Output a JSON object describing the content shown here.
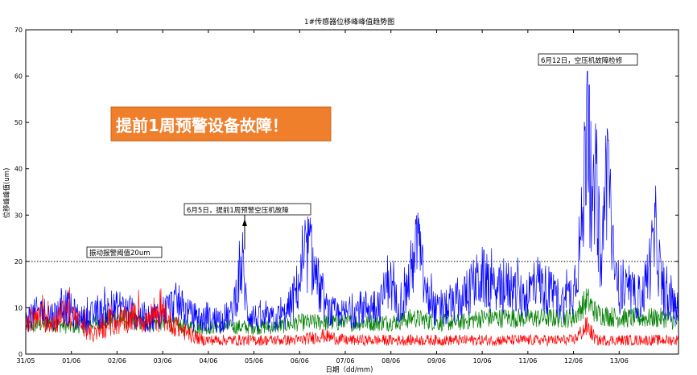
{
  "chart_data": {
    "type": "line",
    "title": "1#传感器位移峰峰值趋势图",
    "xlabel": "日期（dd/mm)",
    "ylabel": "位移峰峰值(um)",
    "ylim": [
      0,
      70
    ],
    "yticks": [
      0,
      10,
      20,
      30,
      40,
      50,
      60,
      70
    ],
    "xticks": [
      "31/05",
      "01/06",
      "02/06",
      "03/06",
      "04/06",
      "05/06",
      "06/06",
      "07/06",
      "08/06",
      "09/06",
      "10/06",
      "11/06",
      "12/06",
      "13/06"
    ],
    "xlim_days": [
      0,
      14.3
    ],
    "threshold": {
      "value": 20,
      "label": "振动报警阈值20um"
    },
    "annotations": [
      {
        "text": "6月5日，提前1周预警空压机故障",
        "x_day": 4.8,
        "y": 24
      },
      {
        "text": "6月12日，空压机故障检修",
        "x_day": 12.3,
        "y": 63
      }
    ],
    "callout": {
      "text": "提前1周预警设备故障！",
      "background": "#f07f2c"
    },
    "series": [
      {
        "color": "#0000ff",
        "points": [
          [
            0.0,
            8
          ],
          [
            0.3,
            10
          ],
          [
            0.6,
            9
          ],
          [
            0.9,
            11
          ],
          [
            1.2,
            8
          ],
          [
            1.5,
            9
          ],
          [
            1.8,
            10
          ],
          [
            2.1,
            11
          ],
          [
            2.4,
            9
          ],
          [
            2.7,
            8
          ],
          [
            3.0,
            10
          ],
          [
            3.3,
            12
          ],
          [
            3.6,
            9
          ],
          [
            3.9,
            8
          ],
          [
            4.2,
            8
          ],
          [
            4.5,
            9
          ],
          [
            4.75,
            21
          ],
          [
            4.85,
            10
          ],
          [
            5.1,
            8
          ],
          [
            5.4,
            8
          ],
          [
            5.7,
            9
          ],
          [
            5.9,
            14
          ],
          [
            6.1,
            20
          ],
          [
            6.2,
            25
          ],
          [
            6.35,
            18
          ],
          [
            6.6,
            10
          ],
          [
            6.9,
            9
          ],
          [
            7.2,
            10
          ],
          [
            7.5,
            11
          ],
          [
            7.8,
            12
          ],
          [
            7.95,
            18
          ],
          [
            8.1,
            12
          ],
          [
            8.3,
            13
          ],
          [
            8.5,
            22
          ],
          [
            8.6,
            26
          ],
          [
            8.75,
            14
          ],
          [
            9.0,
            10
          ],
          [
            9.3,
            11
          ],
          [
            9.6,
            13
          ],
          [
            9.8,
            16
          ],
          [
            10.0,
            18
          ],
          [
            10.3,
            14
          ],
          [
            10.6,
            16
          ],
          [
            10.9,
            13
          ],
          [
            11.2,
            17
          ],
          [
            11.5,
            14
          ],
          [
            11.8,
            12
          ],
          [
            12.0,
            15
          ],
          [
            12.2,
            30
          ],
          [
            12.3,
            61
          ],
          [
            12.4,
            28
          ],
          [
            12.5,
            41
          ],
          [
            12.6,
            18
          ],
          [
            12.75,
            48
          ],
          [
            12.9,
            16
          ],
          [
            13.2,
            14
          ],
          [
            13.5,
            13
          ],
          [
            13.7,
            22
          ],
          [
            13.8,
            28
          ],
          [
            13.95,
            14
          ],
          [
            14.1,
            12
          ],
          [
            14.3,
            10
          ]
        ]
      },
      {
        "color": "#007f00",
        "points": [
          [
            0.0,
            6
          ],
          [
            0.5,
            7
          ],
          [
            1.0,
            6
          ],
          [
            1.5,
            7
          ],
          [
            2.0,
            8
          ],
          [
            2.5,
            7
          ],
          [
            3.0,
            7
          ],
          [
            3.5,
            6
          ],
          [
            4.0,
            6
          ],
          [
            4.5,
            6
          ],
          [
            5.0,
            6
          ],
          [
            5.5,
            6
          ],
          [
            6.0,
            7
          ],
          [
            6.5,
            7
          ],
          [
            7.0,
            7
          ],
          [
            7.5,
            7
          ],
          [
            8.0,
            7
          ],
          [
            8.5,
            8
          ],
          [
            9.0,
            7
          ],
          [
            9.5,
            7
          ],
          [
            10.0,
            8
          ],
          [
            10.5,
            8
          ],
          [
            11.0,
            8
          ],
          [
            11.5,
            8
          ],
          [
            12.0,
            8
          ],
          [
            12.3,
            12
          ],
          [
            12.5,
            9
          ],
          [
            13.0,
            8
          ],
          [
            13.5,
            8
          ],
          [
            14.0,
            8
          ],
          [
            14.3,
            7
          ]
        ]
      },
      {
        "color": "#ff0000",
        "points": [
          [
            0.0,
            6
          ],
          [
            0.3,
            8
          ],
          [
            0.6,
            7
          ],
          [
            0.9,
            9
          ],
          [
            1.2,
            6
          ],
          [
            1.5,
            4
          ],
          [
            1.8,
            6
          ],
          [
            2.1,
            7
          ],
          [
            2.4,
            8
          ],
          [
            2.7,
            7
          ],
          [
            3.0,
            8
          ],
          [
            3.3,
            6
          ],
          [
            3.6,
            4
          ],
          [
            3.9,
            3
          ],
          [
            4.2,
            3
          ],
          [
            4.5,
            3
          ],
          [
            4.8,
            3
          ],
          [
            5.1,
            3
          ],
          [
            5.5,
            3
          ],
          [
            6.0,
            3
          ],
          [
            6.5,
            4
          ],
          [
            7.0,
            3
          ],
          [
            7.5,
            3
          ],
          [
            8.0,
            3
          ],
          [
            8.5,
            3
          ],
          [
            9.0,
            3
          ],
          [
            9.5,
            3
          ],
          [
            10.0,
            3
          ],
          [
            10.5,
            3
          ],
          [
            11.0,
            3
          ],
          [
            11.5,
            3
          ],
          [
            12.0,
            3
          ],
          [
            12.3,
            6
          ],
          [
            12.5,
            3
          ],
          [
            13.0,
            3
          ],
          [
            13.5,
            3
          ],
          [
            14.0,
            3
          ],
          [
            14.3,
            3
          ]
        ]
      }
    ]
  }
}
